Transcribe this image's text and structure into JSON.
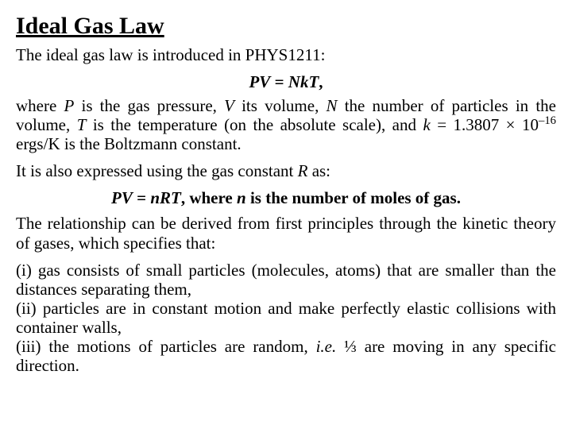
{
  "title": "Ideal Gas Law",
  "intro": "The ideal gas law is introduced in PHYS1211:",
  "eq1_lhs": "PV",
  "eq1_eq": " = ",
  "eq1_rhs": "NkT",
  "eq1_comma": ",",
  "where_pre": "where ",
  "P": "P",
  "where_1": " is the gas pressure, ",
  "V": "V",
  "where_2": " its volume, ",
  "N": "N",
  "where_3": " the number of particles in the volume, ",
  "T": "T",
  "where_4": " is the temperature (on the absolute scale), and ",
  "k": "k",
  "where_5": " = 1.3807 × 10",
  "exp": "–16",
  "where_6": " ergs/K is the Boltzmann constant.",
  "also_pre": "It is also expressed using the gas constant ",
  "R": "R",
  "also_post": " as:",
  "eq2_lhs": "PV",
  "eq2_eq": " = ",
  "eq2_rhs": "nRT",
  "eq2_where": ", where ",
  "n": "n",
  "eq2_post": " is the number of moles of gas.",
  "rel": "The relationship can be derived from first principles through the kinetic theory of gases, which specifies that:",
  "p1": "(i) gas consists of small particles (molecules, atoms) that are smaller than the distances separating them,",
  "p2": "(ii) particles are in constant motion and make perfectly elastic collisions with container walls,",
  "p3_pre": "(iii) the motions of particles are random, ",
  "ie": "i.e.",
  "p3_post": " ⅓ are moving in any specific direction."
}
